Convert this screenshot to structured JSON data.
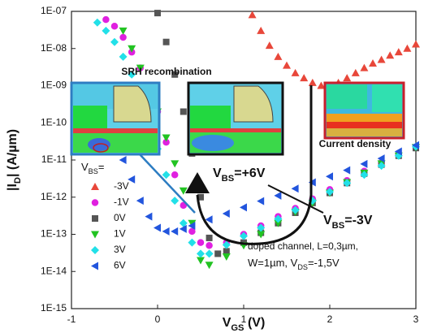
{
  "chart_data": {
    "type": "scatter",
    "xlabel": [
      {
        "text": "V"
      },
      {
        "text": "GS",
        "sub": true
      },
      {
        "text": " (V)"
      }
    ],
    "ylabel": [
      {
        "text": "|I"
      },
      {
        "text": "D",
        "sub": true
      },
      {
        "text": "| (A/µm)"
      }
    ],
    "xlim": [
      -1,
      3
    ],
    "xticks": [
      -1,
      0,
      1,
      2,
      3
    ],
    "ylim": [
      1e-15,
      1e-07
    ],
    "log_y": true,
    "yticks": [
      {
        "value": 1e-15,
        "label": "1E-15"
      },
      {
        "value": 1e-14,
        "label": "1E-14"
      },
      {
        "value": 1e-13,
        "label": "1E-13"
      },
      {
        "value": 1e-12,
        "label": "1E-12"
      },
      {
        "value": 1e-11,
        "label": "1E-11"
      },
      {
        "value": 1e-10,
        "label": "1E-10"
      },
      {
        "value": 1e-09,
        "label": "1E-09"
      },
      {
        "value": 1e-08,
        "label": "1E-08"
      },
      {
        "value": 1e-07,
        "label": "1E-07"
      }
    ],
    "legend_title": [
      {
        "text": "V"
      },
      {
        "text": "BS",
        "sub": true
      },
      {
        "text": "="
      }
    ],
    "series": [
      {
        "name": "-3V",
        "color": "#e8473a",
        "marker": "triangle-up",
        "x": [
          1.1,
          1.2,
          1.3,
          1.4,
          1.5,
          1.6,
          1.7,
          1.8,
          1.9,
          2.0,
          2.1,
          2.2,
          2.3,
          2.4,
          2.5,
          2.6,
          2.7,
          2.8,
          2.9,
          3.0
        ],
        "values": [
          8e-08,
          3e-08,
          1.2e-08,
          6e-09,
          3.5e-09,
          2.2e-09,
          1.6e-09,
          1.2e-09,
          1e-09,
          1e-09,
          1.2e-09,
          1.6e-09,
          2.2e-09,
          3e-09,
          4e-09,
          5e-09,
          6.5e-09,
          8e-09,
          1e-08,
          1.3e-08
        ]
      },
      {
        "name": "-1V",
        "color": "#e020e0",
        "marker": "circle",
        "x": [
          -0.6,
          -0.5,
          -0.4,
          -0.3,
          -0.2,
          -0.1,
          0,
          0.1,
          0.2,
          0.3,
          0.4,
          0.5,
          0.6,
          0.8,
          1.0,
          1.2,
          1.4,
          1.6,
          1.8,
          2.0,
          2.2,
          2.4,
          2.6,
          2.8,
          3.0
        ],
        "values": [
          6e-08,
          4e-08,
          2e-08,
          8e-09,
          3e-09,
          8e-10,
          2e-10,
          3e-11,
          4e-12,
          6e-13,
          1.2e-13,
          6e-14,
          5e-14,
          6e-14,
          1e-13,
          1.7e-13,
          3e-13,
          5e-13,
          9e-13,
          1.6e-12,
          2.8e-12,
          5e-12,
          8.5e-12,
          1.4e-11,
          2.2e-11
        ]
      },
      {
        "name": "0V",
        "color": "#555555",
        "marker": "square",
        "x": [
          0,
          0.1,
          0.2,
          0.3,
          0.4,
          0.5,
          0.6,
          0.7,
          0.8,
          1.0,
          1.2,
          1.4,
          1.6,
          1.8,
          2.0,
          2.2,
          2.4,
          2.6,
          2.8,
          3.0
        ],
        "values": [
          9e-08,
          1.5e-08,
          2e-09,
          2e-10,
          1.5e-11,
          1e-12,
          8e-14,
          3e-14,
          3.5e-14,
          6e-14,
          1.1e-13,
          2e-13,
          3.8e-13,
          7e-13,
          1.3e-12,
          2.4e-12,
          4.3e-12,
          7.5e-12,
          1.3e-11,
          2.1e-11
        ]
      },
      {
        "name": "1V",
        "color": "#22c322",
        "marker": "triangle-down",
        "x": [
          -0.4,
          -0.3,
          -0.2,
          -0.1,
          0,
          0.1,
          0.2,
          0.3,
          0.4,
          0.5,
          0.6,
          0.8,
          1.0,
          1.2,
          1.4,
          1.6,
          1.8,
          2.0,
          2.2,
          2.4,
          2.6,
          2.8,
          3.0
        ],
        "values": [
          3e-08,
          1e-08,
          3e-09,
          8e-10,
          2e-10,
          4e-11,
          8e-12,
          1.5e-12,
          2e-13,
          2e-14,
          1.5e-14,
          2.5e-14,
          5e-14,
          1e-13,
          2e-13,
          4e-13,
          7e-13,
          1.3e-12,
          2.5e-12,
          4.5e-12,
          8e-12,
          1.3e-11,
          2.2e-11
        ]
      },
      {
        "name": "3V",
        "color": "#22e0e8",
        "marker": "diamond",
        "x": [
          -0.7,
          -0.6,
          -0.5,
          -0.4,
          -0.3,
          -0.2,
          -0.1,
          0,
          0.1,
          0.2,
          0.3,
          0.4,
          0.5,
          0.6,
          0.8,
          1.0,
          1.2,
          1.4,
          1.6,
          1.8,
          2.0,
          2.2,
          2.4,
          2.6,
          2.8,
          3.0
        ],
        "values": [
          5e-08,
          3e-08,
          1.5e-08,
          6e-09,
          2e-09,
          5e-10,
          1e-10,
          2e-11,
          4e-12,
          8e-13,
          2e-13,
          6e-14,
          3e-14,
          3e-14,
          5.2e-14,
          9e-14,
          1.5e-13,
          2.6e-13,
          4.5e-13,
          8e-13,
          1.4e-12,
          2.4e-12,
          4e-12,
          7e-12,
          1.3e-11,
          2.3e-11
        ]
      },
      {
        "name": "6V",
        "color": "#2255dd",
        "marker": "triangle-left",
        "x": [
          -0.5,
          -0.4,
          -0.3,
          -0.2,
          -0.1,
          0,
          0.1,
          0.2,
          0.3,
          0.4,
          0.6,
          0.8,
          1.0,
          1.2,
          1.4,
          1.6,
          1.8,
          2.0,
          2.2,
          2.4,
          2.6,
          2.8,
          3.0
        ],
        "values": [
          3e-11,
          1e-11,
          3e-12,
          8e-13,
          3e-13,
          1.5e-13,
          1.2e-13,
          1.2e-13,
          1.4e-13,
          1.7e-13,
          2.5e-13,
          3.6e-13,
          5.3e-13,
          7.8e-13,
          1.1e-12,
          1.7e-12,
          2.5e-12,
          3.6e-12,
          5.3e-12,
          7.8e-12,
          1.1e-11,
          1.7e-11,
          2.5e-11
        ]
      }
    ],
    "annotations": {
      "srh": "SRH recombination",
      "current": "Current density",
      "vbs_pos": [
        {
          "text": "V"
        },
        {
          "text": "BS",
          "sub": true
        },
        {
          "text": "=+6V"
        }
      ],
      "vbs_neg": [
        {
          "text": "V"
        },
        {
          "text": "BS",
          "sub": true
        },
        {
          "text": "=-3V"
        }
      ],
      "note_line1": "doped channel, L=0,3µm,",
      "note_line2": [
        {
          "text": "W=1µm, V"
        },
        {
          "text": "DS",
          "sub": true
        },
        {
          "text": "=-1,5V"
        }
      ]
    }
  }
}
